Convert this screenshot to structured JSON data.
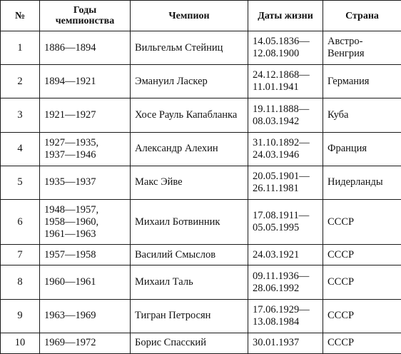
{
  "table": {
    "headers": {
      "num": "№",
      "years": "Годы\nчемпионства",
      "champion": "Чемпион",
      "life": "Даты жизни",
      "country": "Страна"
    },
    "rows": [
      {
        "num": "1",
        "years": "1886—1894",
        "champion": "Вильгельм Стейниц",
        "life": "14.05.1836—\n12.08.1900",
        "country": "Австро-\nВенгрия"
      },
      {
        "num": "2",
        "years": "1894—1921",
        "champion": "Эмануил Ласкер",
        "life": "24.12.1868—\n11.01.1941",
        "country": "Германия"
      },
      {
        "num": "3",
        "years": "1921—1927",
        "champion": "Хосе Рауль Капабланка",
        "life": "19.11.1888—\n08.03.1942",
        "country": "Куба"
      },
      {
        "num": "4",
        "years": "1927—1935,\n1937—1946",
        "champion": "Александр Алехин",
        "life": "31.10.1892—\n24.03.1946",
        "country": "Франция"
      },
      {
        "num": "5",
        "years": "1935—1937",
        "champion": "Макс Эйве",
        "life": "20.05.1901—\n26.11.1981",
        "country": "Нидерланды"
      },
      {
        "num": "6",
        "years": "1948—1957,\n1958—1960,\n1961—1963",
        "champion": "Михаил Ботвинник",
        "life": "17.08.1911—\n05.05.1995",
        "country": "СССР"
      },
      {
        "num": "7",
        "years": "1957—1958",
        "champion": "Василий Смыслов",
        "life": "24.03.1921",
        "country": "СССР"
      },
      {
        "num": "8",
        "years": "1960—1961",
        "champion": "Михаил Таль",
        "life": "09.11.1936—\n28.06.1992",
        "country": "СССР"
      },
      {
        "num": "9",
        "years": "1963—1969",
        "champion": "Тигран Петросян",
        "life": "17.06.1929—\n13.08.1984",
        "country": "СССР"
      },
      {
        "num": "10",
        "years": "1969—1972",
        "champion": "Борис Спасский",
        "life": "30.01.1937",
        "country": "СССР"
      }
    ]
  }
}
